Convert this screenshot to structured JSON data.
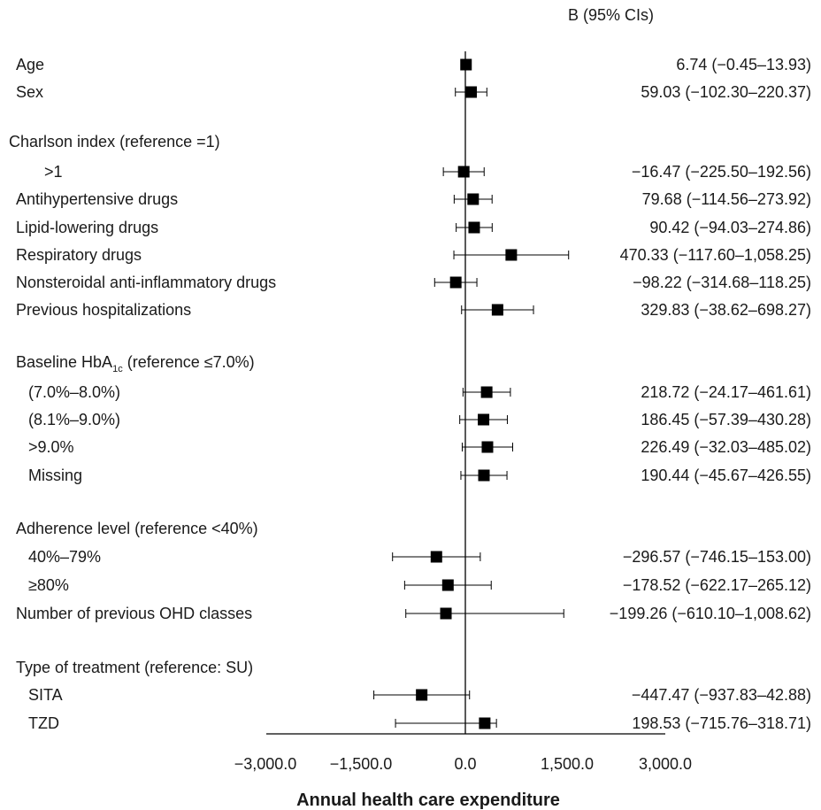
{
  "chart_data": {
    "type": "forest",
    "column_header": "B (95% CIs)",
    "xlabel": "Annual health care expenditure",
    "xlim": [
      -3000,
      3000
    ],
    "x_ticks": [
      -3000,
      -1500,
      0,
      1500,
      3000
    ],
    "x_tick_labels": [
      "−3,000.0",
      "−1,500.0",
      "0.0",
      "1,500.0",
      "3,000.0"
    ],
    "rows": [
      {
        "label": "Age",
        "indent": 0,
        "estimate": 6.74,
        "lower": -0.45,
        "upper": 13.93,
        "ci_text": "6.74 (−0.45–13.93)"
      },
      {
        "label": "Sex",
        "indent": 0,
        "estimate": 59.03,
        "lower": -102.3,
        "upper": 220.37,
        "ci_text": "59.03 (−102.30–220.37)"
      },
      {
        "label": "Charlson index (reference =1)",
        "indent": -1,
        "header": true
      },
      {
        "label": ">1",
        "indent": 2,
        "estimate": -16.47,
        "lower": -225.5,
        "upper": 192.56,
        "ci_text": "−16.47 (−225.50–192.56)"
      },
      {
        "label": "Antihypertensive drugs",
        "indent": 0,
        "estimate": 79.68,
        "lower": -114.56,
        "upper": 273.92,
        "ci_text": "79.68 (−114.56–273.92)"
      },
      {
        "label": "Lipid-lowering drugs",
        "indent": 0,
        "estimate": 90.42,
        "lower": -94.03,
        "upper": 274.86,
        "ci_text": "90.42 (−94.03–274.86)"
      },
      {
        "label": "Respiratory drugs",
        "indent": 0,
        "estimate": 470.33,
        "lower": -117.6,
        "upper": 1058.25,
        "ci_text": "470.33 (−117.60–1,058.25)"
      },
      {
        "label": "Nonsteroidal anti-inflammatory drugs",
        "indent": 0,
        "estimate": -98.22,
        "lower": -314.68,
        "upper": 118.25,
        "ci_text": "−98.22 (−314.68–118.25)"
      },
      {
        "label": "Previous hospitalizations",
        "indent": 0,
        "estimate": 329.83,
        "lower": -38.62,
        "upper": 698.27,
        "ci_text": "329.83 (−38.62–698.27)"
      },
      {
        "label": "Baseline HbA",
        "label_sub": "1c",
        "label_rest": " (reference ≤7.0%)",
        "indent": 0,
        "header": true
      },
      {
        "label": "(7.0%–8.0%)",
        "indent": 1,
        "estimate": 218.72,
        "lower": -24.17,
        "upper": 461.61,
        "ci_text": "218.72 (−24.17–461.61)"
      },
      {
        "label": "(8.1%–9.0%)",
        "indent": 1,
        "estimate": 186.45,
        "lower": -57.39,
        "upper": 430.28,
        "ci_text": "186.45 (−57.39–430.28)"
      },
      {
        "label": ">9.0%",
        "indent": 1,
        "estimate": 226.49,
        "lower": -32.03,
        "upper": 485.02,
        "ci_text": "226.49 (−32.03–485.02)"
      },
      {
        "label": "Missing",
        "indent": 1,
        "estimate": 190.44,
        "lower": -45.67,
        "upper": 426.55,
        "ci_text": "190.44 (−45.67–426.55)"
      },
      {
        "label": "Adherence level (reference <40%)",
        "indent": 0,
        "header": true
      },
      {
        "label": "40%–79%",
        "indent": 1,
        "estimate": -296.57,
        "lower": -746.15,
        "upper": 153.0,
        "ci_text": "−296.57 (−746.15–153.00)"
      },
      {
        "label": "≥80%",
        "indent": 1,
        "estimate": -178.52,
        "lower": -622.17,
        "upper": 265.12,
        "ci_text": "−178.52 (−622.17–265.12)"
      },
      {
        "label": "Number of previous OHD classes",
        "indent": 0,
        "estimate": -199.26,
        "lower": -610.1,
        "upper": 1008.62,
        "ci_text": "−199.26 (−610.10–1,008.62)"
      },
      {
        "label": "Type of treatment (reference: SU)",
        "indent": 0,
        "header": true
      },
      {
        "label": "SITA",
        "indent": 1,
        "estimate": -447.47,
        "lower": -937.83,
        "upper": 42.88,
        "ci_text": "−447.47 (−937.83–42.88)"
      },
      {
        "label": "TZD",
        "indent": 1,
        "estimate": 198.53,
        "lower": -715.76,
        "upper": 318.71,
        "ci_text": "198.53 (−715.76–318.71)"
      }
    ]
  }
}
